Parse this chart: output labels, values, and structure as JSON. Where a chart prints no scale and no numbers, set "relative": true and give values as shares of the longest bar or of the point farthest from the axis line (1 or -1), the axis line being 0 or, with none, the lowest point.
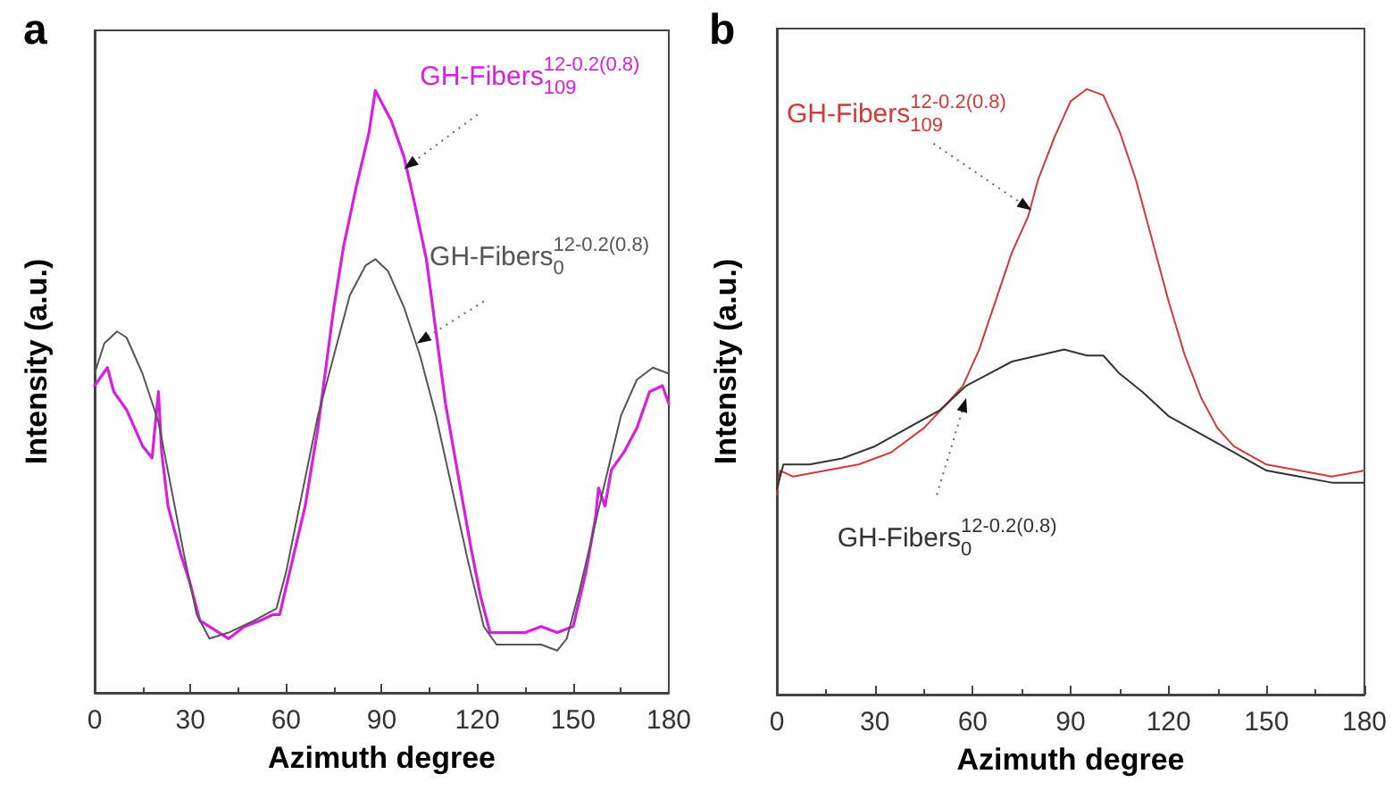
{
  "chart_data": [
    {
      "type": "line",
      "title": "a",
      "xlabel": "Azimuth degree",
      "ylabel": "Intensity (a.u.)",
      "relative": true,
      "xlim": [
        0,
        180
      ],
      "xticks": [
        0,
        30,
        60,
        90,
        120,
        150,
        180
      ],
      "grid": false,
      "legend": false,
      "marker": "none",
      "line_style": "solid",
      "series": [
        {
          "name": "GH-Fibers$_{109}$$^{12-0.2(0.8)}$",
          "color": "#d81ee0",
          "x": [
            0,
            4,
            6,
            10,
            15,
            18,
            20,
            21,
            23,
            27,
            30,
            33,
            36,
            42,
            47,
            52,
            56,
            58,
            62,
            66,
            70,
            75,
            78,
            82,
            86,
            88,
            90,
            93,
            97,
            100,
            104,
            107,
            110,
            114,
            118,
            121,
            124,
            130,
            135,
            140,
            145,
            150,
            154,
            157,
            158,
            160,
            162,
            166,
            170,
            174,
            178,
            180
          ],
          "values": [
            0.51,
            0.54,
            0.5,
            0.47,
            0.41,
            0.39,
            0.5,
            0.4,
            0.31,
            0.23,
            0.18,
            0.12,
            0.11,
            0.09,
            0.11,
            0.12,
            0.13,
            0.13,
            0.22,
            0.31,
            0.44,
            0.64,
            0.74,
            0.84,
            0.93,
            1.0,
            0.98,
            0.95,
            0.89,
            0.82,
            0.72,
            0.6,
            0.48,
            0.36,
            0.24,
            0.16,
            0.1,
            0.1,
            0.1,
            0.11,
            0.1,
            0.11,
            0.2,
            0.29,
            0.34,
            0.31,
            0.37,
            0.4,
            0.44,
            0.5,
            0.51,
            0.48
          ]
        },
        {
          "name": "GH-Fibers$_{0}$$^{12-0.2(0.8)}$",
          "color": "#555555",
          "x": [
            0,
            3,
            7,
            10,
            15,
            20,
            24,
            28,
            32,
            36,
            42,
            50,
            57,
            60,
            65,
            70,
            75,
            80,
            85,
            88,
            92,
            97,
            102,
            107,
            112,
            117,
            122,
            126,
            135,
            140,
            145,
            148,
            152,
            156,
            160,
            165,
            170,
            175,
            180
          ],
          "values": [
            0.53,
            0.58,
            0.6,
            0.59,
            0.53,
            0.45,
            0.34,
            0.23,
            0.13,
            0.09,
            0.1,
            0.12,
            0.14,
            0.2,
            0.33,
            0.46,
            0.56,
            0.66,
            0.71,
            0.72,
            0.7,
            0.64,
            0.56,
            0.46,
            0.34,
            0.22,
            0.11,
            0.08,
            0.08,
            0.08,
            0.07,
            0.09,
            0.17,
            0.26,
            0.35,
            0.46,
            0.52,
            0.54,
            0.53
          ]
        }
      ]
    },
    {
      "type": "line",
      "title": "b",
      "xlabel": "Azimuth degree",
      "ylabel": "Intensity (a.u.)",
      "relative": true,
      "xlim": [
        0,
        180
      ],
      "xticks": [
        0,
        30,
        60,
        90,
        120,
        150,
        180
      ],
      "grid": false,
      "legend": false,
      "marker": "none",
      "line_style": "solid",
      "series": [
        {
          "name": "GH-Fibers$_{109}$$^{12-0.2(0.8)}$",
          "color": "#d03a3a",
          "x": [
            0,
            1,
            5,
            15,
            25,
            35,
            45,
            52,
            57,
            62,
            67,
            72,
            77,
            80,
            85,
            90,
            95,
            100,
            105,
            110,
            115,
            120,
            125,
            130,
            135,
            140,
            150,
            160,
            170,
            180
          ],
          "values": [
            0.33,
            0.37,
            0.36,
            0.37,
            0.38,
            0.4,
            0.44,
            0.48,
            0.51,
            0.57,
            0.65,
            0.73,
            0.79,
            0.85,
            0.92,
            0.98,
            1.0,
            0.99,
            0.93,
            0.85,
            0.75,
            0.65,
            0.56,
            0.49,
            0.44,
            0.41,
            0.38,
            0.37,
            0.36,
            0.37
          ]
        },
        {
          "name": "GH-Fibers$_{0}$$^{12-0.2(0.8)}$",
          "color": "#333333",
          "x": [
            0,
            2,
            10,
            20,
            30,
            40,
            50,
            58,
            65,
            72,
            80,
            88,
            95,
            100,
            105,
            112,
            120,
            130,
            140,
            150,
            160,
            170,
            180
          ],
          "values": [
            0.34,
            0.38,
            0.38,
            0.39,
            0.41,
            0.44,
            0.47,
            0.51,
            0.53,
            0.55,
            0.56,
            0.57,
            0.56,
            0.56,
            0.53,
            0.5,
            0.46,
            0.43,
            0.4,
            0.37,
            0.36,
            0.35,
            0.35
          ]
        }
      ]
    }
  ]
}
